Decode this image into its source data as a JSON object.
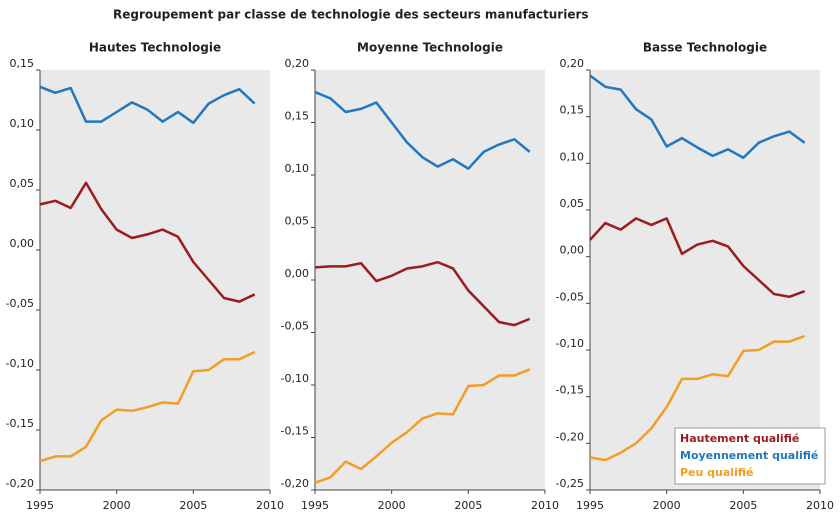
{
  "title": "Regroupement par classe de technologie des secteurs manufacturiers",
  "chart_data": [
    {
      "type": "line",
      "title": "Hautes Technologie",
      "x": [
        1995,
        1996,
        1997,
        1998,
        1999,
        2000,
        2001,
        2002,
        2003,
        2004,
        2005,
        2006,
        2007,
        2008,
        2009
      ],
      "xlim": [
        1995,
        2010
      ],
      "xticks": [
        1995,
        2000,
        2005,
        2010
      ],
      "ylim": [
        -0.2,
        0.15
      ],
      "yticks": [
        {
          "value": -0.2,
          "label": "-0,20"
        },
        {
          "value": -0.15,
          "label": "-0,15"
        },
        {
          "value": -0.1,
          "label": "-0,10"
        },
        {
          "value": -0.05,
          "label": "-0,05"
        },
        {
          "value": 0,
          "label": "0,00"
        },
        {
          "value": 0.05,
          "label": "0,05"
        },
        {
          "value": 0.1,
          "label": "0,10"
        },
        {
          "value": 0.15,
          "label": "0,15"
        }
      ],
      "series": [
        {
          "color": "#9b1b1e",
          "values": [
            0.038,
            0.041,
            0.035,
            0.056,
            0.034,
            0.017,
            0.01,
            0.013,
            0.017,
            0.011,
            -0.01,
            -0.025,
            -0.04,
            -0.043,
            -0.037
          ]
        },
        {
          "color": "#1f78c1",
          "values": [
            0.136,
            0.131,
            0.135,
            0.107,
            0.107,
            0.115,
            0.123,
            0.117,
            0.107,
            0.115,
            0.106,
            0.122,
            0.129,
            0.134,
            0.122
          ]
        },
        {
          "color": "#f39c26",
          "values": [
            -0.176,
            -0.172,
            -0.172,
            -0.164,
            -0.142,
            -0.133,
            -0.134,
            -0.131,
            -0.127,
            -0.128,
            -0.101,
            -0.1,
            -0.091,
            -0.091,
            -0.085
          ]
        }
      ]
    },
    {
      "type": "line",
      "title": "Moyenne Technologie",
      "x": [
        1995,
        1996,
        1997,
        1998,
        1999,
        2000,
        2001,
        2002,
        2003,
        2004,
        2005,
        2006,
        2007,
        2008,
        2009
      ],
      "xlim": [
        1995,
        2010
      ],
      "xticks": [
        1995,
        2000,
        2005,
        2010
      ],
      "ylim": [
        -0.2,
        0.2
      ],
      "yticks": [
        {
          "value": -0.2,
          "label": "-0,20"
        },
        {
          "value": -0.15,
          "label": "-0,15"
        },
        {
          "value": -0.1,
          "label": "-0,10"
        },
        {
          "value": -0.05,
          "label": "-0,05"
        },
        {
          "value": 0,
          "label": "0,00"
        },
        {
          "value": 0.05,
          "label": "0,05"
        },
        {
          "value": 0.1,
          "label": "0,10"
        },
        {
          "value": 0.15,
          "label": "0,15"
        },
        {
          "value": 0.2,
          "label": "0,20"
        }
      ],
      "series": [
        {
          "color": "#9b1b1e",
          "values": [
            0.012,
            0.013,
            0.013,
            0.016,
            -0.001,
            0.004,
            0.011,
            0.013,
            0.017,
            0.011,
            -0.01,
            -0.025,
            -0.04,
            -0.043,
            -0.037
          ]
        },
        {
          "color": "#1f78c1",
          "values": [
            0.179,
            0.173,
            0.16,
            0.163,
            0.169,
            0.15,
            0.131,
            0.117,
            0.108,
            0.115,
            0.106,
            0.122,
            0.129,
            0.134,
            0.122
          ]
        },
        {
          "color": "#f39c26",
          "values": [
            -0.193,
            -0.188,
            -0.173,
            -0.18,
            -0.168,
            -0.155,
            -0.145,
            -0.132,
            -0.127,
            -0.128,
            -0.101,
            -0.1,
            -0.091,
            -0.091,
            -0.085
          ]
        }
      ]
    },
    {
      "type": "line",
      "title": "Basse Technologie",
      "x": [
        1995,
        1996,
        1997,
        1998,
        1999,
        2000,
        2001,
        2002,
        2003,
        2004,
        2005,
        2006,
        2007,
        2008,
        2009
      ],
      "xlim": [
        1995,
        2010
      ],
      "xticks": [
        1995,
        2000,
        2005,
        2010
      ],
      "ylim": [
        -0.25,
        0.2
      ],
      "yticks": [
        {
          "value": -0.25,
          "label": "-0,25"
        },
        {
          "value": -0.2,
          "label": "-0,20"
        },
        {
          "value": -0.15,
          "label": "-0,15"
        },
        {
          "value": -0.1,
          "label": "-0,10"
        },
        {
          "value": -0.05,
          "label": "-0,05"
        },
        {
          "value": 0,
          "label": "0,00"
        },
        {
          "value": 0.05,
          "label": "0,05"
        },
        {
          "value": 0.1,
          "label": "0,10"
        },
        {
          "value": 0.15,
          "label": "0,15"
        },
        {
          "value": 0.2,
          "label": "0,20"
        }
      ],
      "legend": "lower right",
      "series": [
        {
          "name": "Hautement qualifié",
          "color": "#9b1b1e",
          "values": [
            0.018,
            0.036,
            0.029,
            0.041,
            0.034,
            0.041,
            0.003,
            0.013,
            0.017,
            0.011,
            -0.01,
            -0.025,
            -0.04,
            -0.043,
            -0.037
          ]
        },
        {
          "name": "Moyennement qualifié",
          "color": "#1f78c1",
          "values": [
            0.194,
            0.182,
            0.179,
            0.158,
            0.147,
            0.118,
            0.127,
            0.117,
            0.108,
            0.115,
            0.106,
            0.122,
            0.129,
            0.134,
            0.122
          ]
        },
        {
          "name": "Peu qualifié",
          "color": "#f39c26",
          "values": [
            -0.215,
            -0.218,
            -0.21,
            -0.2,
            -0.184,
            -0.161,
            -0.131,
            -0.131,
            -0.126,
            -0.128,
            -0.101,
            -0.1,
            -0.091,
            -0.091,
            -0.085
          ]
        }
      ]
    }
  ]
}
